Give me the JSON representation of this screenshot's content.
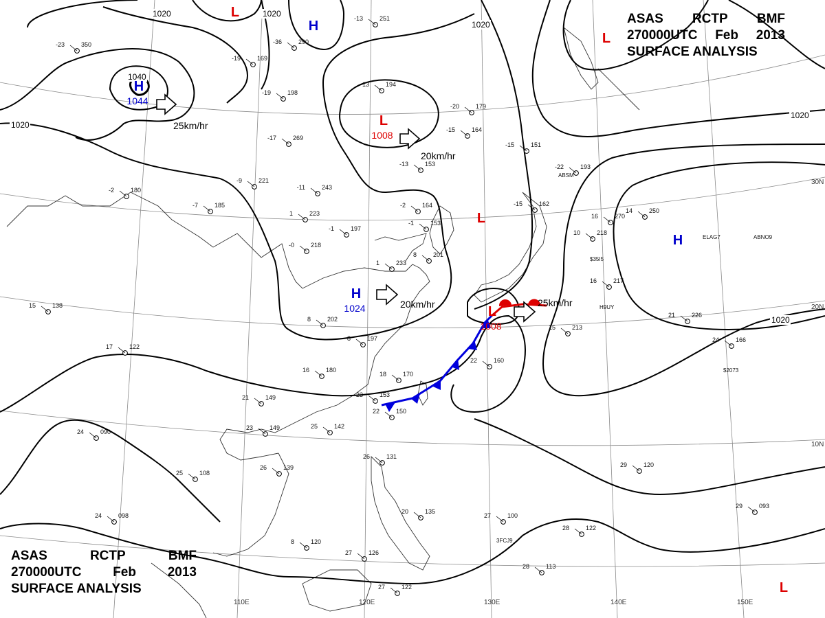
{
  "title": {
    "line1": [
      "ASAS",
      "RCTP",
      "BMF"
    ],
    "line2": [
      "270000UTC",
      "Feb",
      "2013"
    ],
    "line3": "SURFACE ANALYSIS"
  },
  "lon_labels": [
    "110E",
    "120E",
    "130E",
    "140E",
    "150E"
  ],
  "lat_labels": [
    "30N",
    "20N",
    "10N"
  ],
  "isobar_labels": [
    "1020",
    "1020",
    "1020",
    "1020",
    "1020",
    "1020",
    "1040"
  ],
  "pressure_systems": [
    {
      "type": "H",
      "value": "1044",
      "color": "#0000cc"
    },
    {
      "type": "H",
      "value": "",
      "color": "#0000cc"
    },
    {
      "type": "L",
      "value": "",
      "color": "#dd0000"
    },
    {
      "type": "L",
      "value": "1008",
      "color": "#dd0000"
    },
    {
      "type": "H",
      "value": "1024",
      "color": "#0000cc"
    },
    {
      "type": "L",
      "value": "",
      "color": "#dd0000"
    },
    {
      "type": "L",
      "value": "1008",
      "color": "#dd0000"
    },
    {
      "type": "H",
      "value": "",
      "color": "#0000cc"
    },
    {
      "type": "L",
      "value": "",
      "color": "#dd0000"
    },
    {
      "type": "L",
      "value": "",
      "color": "#dd0000"
    }
  ],
  "motion_labels": [
    "25km/hr",
    "20km/hr",
    "20km/hr",
    "25km/hr"
  ],
  "station_plots": [
    {
      "t": "-23",
      "p": "350"
    },
    {
      "t": "-36",
      "p": "290"
    },
    {
      "t": "-13",
      "p": "251"
    },
    {
      "t": "-19",
      "p": "169"
    },
    {
      "t": "-19",
      "p": "198"
    },
    {
      "t": "-17",
      "p": "269"
    },
    {
      "t": "-13",
      "p": "194"
    },
    {
      "t": "-13",
      "p": "153"
    },
    {
      "t": "-15",
      "p": "164"
    },
    {
      "t": "-20",
      "p": "179"
    },
    {
      "t": "-9",
      "p": "221"
    },
    {
      "t": "-11",
      "p": "243"
    },
    {
      "t": "-7",
      "p": "185"
    },
    {
      "t": "-2",
      "p": "180"
    },
    {
      "t": "1",
      "p": "223"
    },
    {
      "t": "-1",
      "p": "197"
    },
    {
      "t": "-0",
      "p": "218"
    },
    {
      "t": "-2",
      "p": "164"
    },
    {
      "t": "-1",
      "p": "153"
    },
    {
      "t": "1",
      "p": "233"
    },
    {
      "t": "8",
      "p": "201"
    },
    {
      "t": "8",
      "p": "202"
    },
    {
      "t": "8",
      "p": "197"
    },
    {
      "t": "16",
      "p": "180"
    },
    {
      "t": "18",
      "p": "170"
    },
    {
      "t": "21",
      "p": "149"
    },
    {
      "t": "23",
      "p": "153"
    },
    {
      "t": "22",
      "p": "150"
    },
    {
      "t": "25",
      "p": "142"
    },
    {
      "t": "23",
      "p": "149"
    },
    {
      "t": "26",
      "p": "139"
    },
    {
      "t": "26",
      "p": "131"
    },
    {
      "t": "25",
      "p": "108"
    },
    {
      "t": "24",
      "p": "098"
    },
    {
      "t": "8",
      "p": "120"
    },
    {
      "t": "27",
      "p": "126"
    },
    {
      "t": "27",
      "p": "122"
    },
    {
      "t": "24",
      "p": "090"
    },
    {
      "t": "17",
      "p": "122"
    },
    {
      "t": "15",
      "p": "138"
    },
    {
      "t": "10",
      "p": "218"
    },
    {
      "t": "16",
      "p": "217"
    },
    {
      "t": "16",
      "p": "270"
    },
    {
      "t": "14",
      "p": "250"
    },
    {
      "t": "21",
      "p": "226"
    },
    {
      "t": "24",
      "p": "166"
    },
    {
      "t": "29",
      "p": "120"
    },
    {
      "t": "29",
      "p": "093"
    },
    {
      "t": "27",
      "p": "100"
    },
    {
      "t": "28",
      "p": "122"
    },
    {
      "t": "28",
      "p": "113"
    },
    {
      "t": "22",
      "p": "160"
    },
    {
      "t": "-15",
      "p": "151"
    },
    {
      "t": "-15",
      "p": "162"
    },
    {
      "t": "-22",
      "p": "193"
    },
    {
      "t": "15",
      "p": "213"
    },
    {
      "t": "20",
      "p": "135"
    }
  ],
  "ship_ids": [
    "ABSM",
    "ELAG7",
    "ABNO9",
    "$35I5",
    "H9UY",
    "$2073",
    "3FCJ9"
  ],
  "colors": {
    "high": "#0000cc",
    "low": "#dd0000",
    "cold_front": "#0000dd",
    "warm_front": "#dd0000",
    "isobar": "#000000",
    "coast": "#222222"
  }
}
